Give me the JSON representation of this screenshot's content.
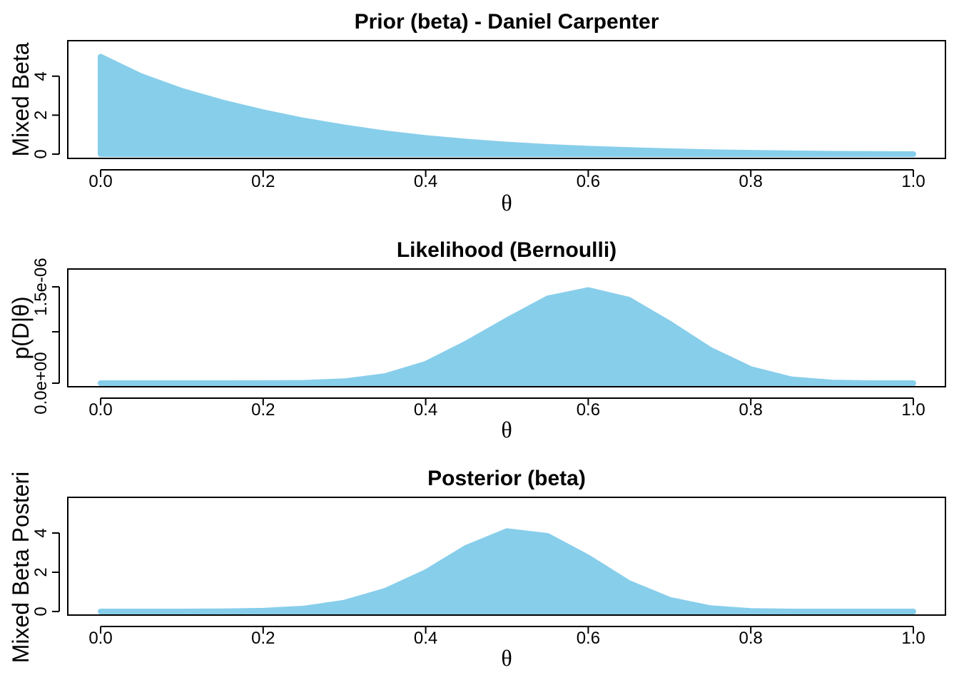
{
  "chart_data": [
    {
      "type": "area",
      "title": "Prior (beta) - Daniel Carpenter",
      "xlabel": "θ",
      "ylabel": "Mixed Beta",
      "xlim": [
        0,
        1
      ],
      "ylim": [
        0,
        5.2
      ],
      "xticks": [
        0,
        0.2,
        0.4,
        0.6,
        0.8,
        1
      ],
      "xtick_labels": [
        "0.0",
        "0.2",
        "0.4",
        "0.6",
        "0.8",
        "1.0"
      ],
      "yticks": [
        0,
        2,
        4
      ],
      "ytick_labels": [
        "0",
        "2",
        "4"
      ],
      "fill_color": "#87CEEB",
      "grid": false,
      "x": [
        0,
        0.05,
        0.1,
        0.15,
        0.2,
        0.25,
        0.3,
        0.35,
        0.4,
        0.45,
        0.5,
        0.55,
        0.6,
        0.65,
        0.7,
        0.75,
        0.8,
        0.85,
        0.9,
        0.95,
        1
      ],
      "y": [
        5.0,
        4.0,
        3.25,
        2.65,
        2.15,
        1.72,
        1.37,
        1.07,
        0.83,
        0.64,
        0.49,
        0.37,
        0.28,
        0.21,
        0.15,
        0.1,
        0.07,
        0.04,
        0.02,
        0.01,
        0.0
      ]
    },
    {
      "type": "area",
      "title": "Likelihood (Bernoulli)",
      "xlabel": "θ",
      "ylabel": "p(D|θ)",
      "xlim": [
        0,
        1
      ],
      "ylim": [
        0,
        1.6e-06
      ],
      "xticks": [
        0,
        0.2,
        0.4,
        0.6,
        0.8,
        1
      ],
      "xtick_labels": [
        "0.0",
        "0.2",
        "0.4",
        "0.6",
        "0.8",
        "1.0"
      ],
      "yticks": [
        0,
        8e-07,
        1.5e-06
      ],
      "ytick_labels": [
        "0.0e+00",
        "",
        "1.5e-06"
      ],
      "fill_color": "#87CEEB",
      "grid": false,
      "x": [
        0,
        0.05,
        0.1,
        0.15,
        0.2,
        0.25,
        0.3,
        0.35,
        0.4,
        0.45,
        0.5,
        0.55,
        0.6,
        0.65,
        0.7,
        0.75,
        0.8,
        0.85,
        0.9,
        0.95,
        1
      ],
      "y": [
        0,
        0,
        0,
        0,
        1e-09,
        5e-09,
        3e-08,
        1.1e-07,
        3e-07,
        6.2e-07,
        9.8e-07,
        1.32e-06,
        1.45e-06,
        1.3e-06,
        9.3e-07,
        5.2e-07,
        2.2e-07,
        6e-08,
        1e-08,
        0,
        0
      ]
    },
    {
      "type": "area",
      "title": "Posterior (beta)",
      "xlabel": "θ",
      "ylabel": "Mixed Beta Posteri",
      "xlim": [
        0,
        1
      ],
      "ylim": [
        0,
        5.2
      ],
      "xticks": [
        0,
        0.2,
        0.4,
        0.6,
        0.8,
        1
      ],
      "xtick_labels": [
        "0.0",
        "0.2",
        "0.4",
        "0.6",
        "0.8",
        "1.0"
      ],
      "yticks": [
        0,
        2,
        4
      ],
      "ytick_labels": [
        "0",
        "2",
        "4"
      ],
      "fill_color": "#87CEEB",
      "grid": false,
      "x": [
        0,
        0.05,
        0.1,
        0.15,
        0.2,
        0.25,
        0.3,
        0.35,
        0.4,
        0.45,
        0.5,
        0.55,
        0.6,
        0.65,
        0.7,
        0.75,
        0.8,
        0.85,
        0.9,
        0.95,
        1
      ],
      "y": [
        0,
        0,
        0,
        0.01,
        0.04,
        0.15,
        0.45,
        1.05,
        2.0,
        3.25,
        4.1,
        3.85,
        2.75,
        1.45,
        0.6,
        0.17,
        0.03,
        0,
        0,
        0,
        0
      ]
    }
  ]
}
